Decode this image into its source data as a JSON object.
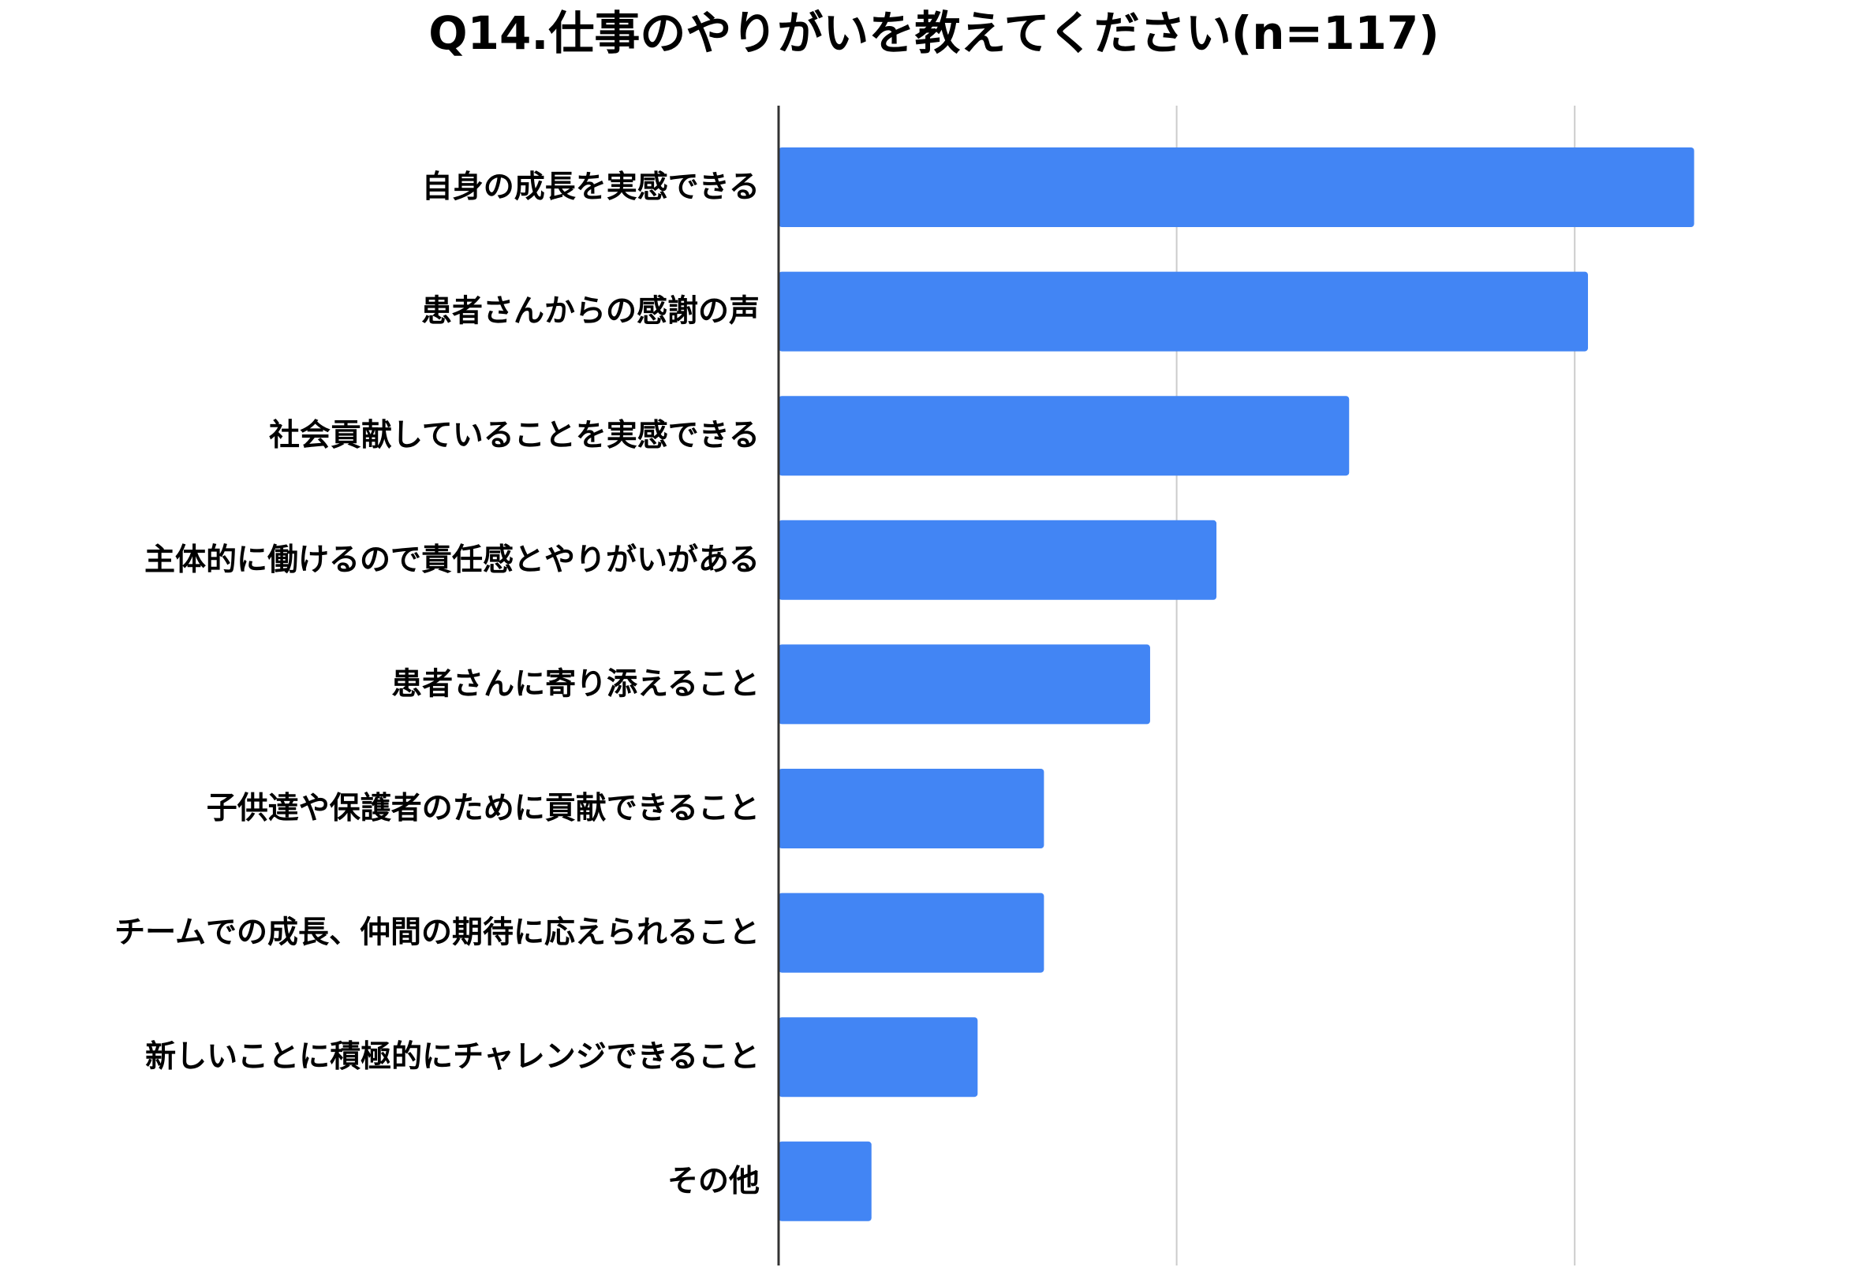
{
  "chart_data": {
    "type": "bar",
    "orientation": "horizontal",
    "title": "Q14.仕事のやりがいを教えてください(n=117)",
    "xlabel": "",
    "ylabel": "",
    "xlim": [
      0,
      100
    ],
    "grid": true,
    "legend": "none",
    "bar_color": "#4285f4",
    "gridline_color": "#cccccc",
    "categories": [
      "自身の成長を実感できる",
      "患者さんからの感謝の声",
      "社会貢献していることを実感できる",
      "主体的に働けるので責任感とやりがいがある",
      "患者さんに寄り添えること",
      "子供達や保護者のために貢献できること",
      "チームでの成長、仲間の期待に応えられること",
      "新しいことに積極的にチャレンジできること",
      "その他"
    ],
    "values": [
      69,
      61,
      43,
      33,
      28,
      20,
      20,
      15,
      7
    ]
  }
}
